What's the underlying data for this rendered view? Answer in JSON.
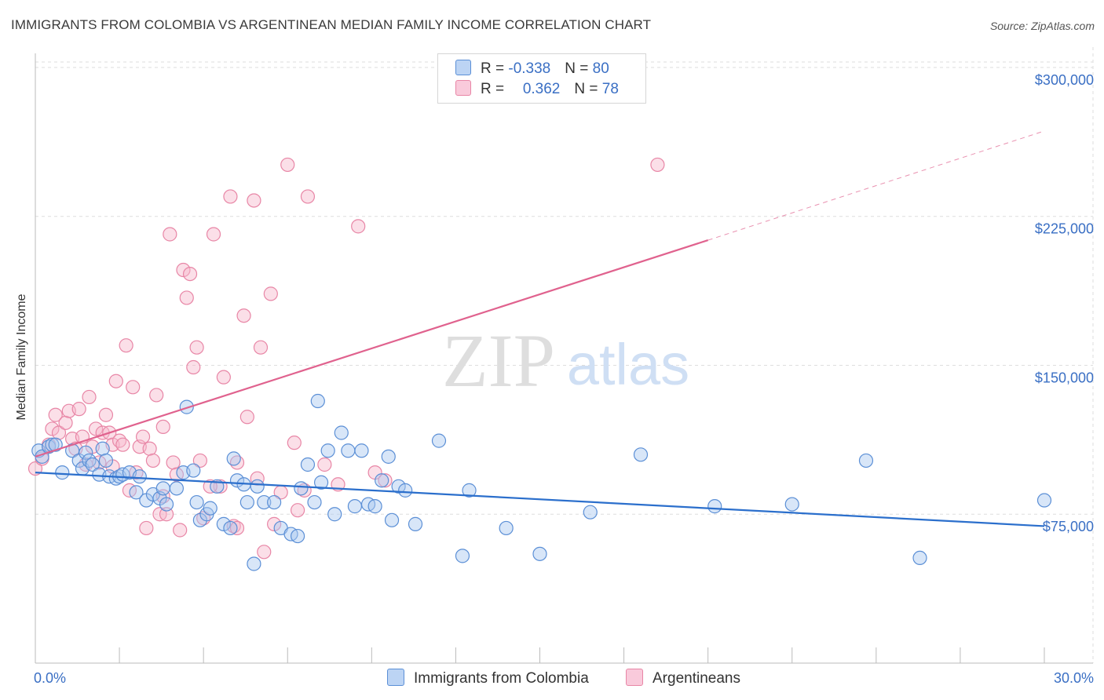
{
  "title": "IMMIGRANTS FROM COLOMBIA VS ARGENTINEAN MEDIAN FAMILY INCOME CORRELATION CHART",
  "source": "Source: ZipAtlas.com",
  "watermark": {
    "zip": "ZIP",
    "atlas": "atlas"
  },
  "legend_top": [
    {
      "r_label": "R = ",
      "r_value": "-0.338",
      "n_label": "N = ",
      "n_value": "80"
    },
    {
      "r_label": "R = ",
      "r_value": "0.362",
      "n_label": "N = ",
      "n_value": "78"
    }
  ],
  "colors": {
    "blue_fill": "#a9c8f0",
    "blue_stroke": "#5b8fd6",
    "blue_line": "#2b6fcc",
    "pink_fill": "#f7b8cc",
    "pink_stroke": "#e886a6",
    "pink_line": "#e0628e",
    "grid": "#dddddd",
    "tick_text": "#3a6fc4"
  },
  "chart_data": {
    "type": "scatter",
    "title": "IMMIGRANTS FROM COLOMBIA VS ARGENTINEAN MEDIAN FAMILY INCOME CORRELATION CHART",
    "xlabel": "",
    "ylabel": "Median Family Income",
    "xlim": [
      0,
      30
    ],
    "ylim": [
      0,
      315000
    ],
    "x_tick_labels": [
      "0.0%",
      "30.0%"
    ],
    "y_ticks": [
      75000,
      150000,
      225000,
      300000
    ],
    "y_tick_labels": [
      "$75,000",
      "$150,000",
      "$225,000",
      "$300,000"
    ],
    "grid": true,
    "legend_position": "bottom",
    "series": [
      {
        "name": "Immigrants from Colombia",
        "r": -0.338,
        "n": 80,
        "trend": {
          "x": [
            0,
            30
          ],
          "y": [
            96000,
            69000
          ],
          "dashed_from": null
        },
        "points": [
          [
            0.1,
            107000
          ],
          [
            0.2,
            104000
          ],
          [
            0.4,
            109000
          ],
          [
            0.5,
            110000
          ],
          [
            0.6,
            110000
          ],
          [
            0.8,
            96000
          ],
          [
            1.1,
            107000
          ],
          [
            1.3,
            102000
          ],
          [
            1.4,
            98000
          ],
          [
            1.5,
            106000
          ],
          [
            1.6,
            102000
          ],
          [
            1.7,
            100000
          ],
          [
            1.9,
            95000
          ],
          [
            2.0,
            108000
          ],
          [
            2.1,
            102000
          ],
          [
            2.2,
            94000
          ],
          [
            2.4,
            93000
          ],
          [
            2.5,
            94000
          ],
          [
            2.6,
            95000
          ],
          [
            2.8,
            96000
          ],
          [
            3.1,
            94000
          ],
          [
            3.0,
            86000
          ],
          [
            3.3,
            82000
          ],
          [
            3.5,
            85000
          ],
          [
            3.7,
            83000
          ],
          [
            3.8,
            88000
          ],
          [
            3.9,
            80000
          ],
          [
            4.2,
            88000
          ],
          [
            4.4,
            96000
          ],
          [
            4.5,
            129000
          ],
          [
            4.7,
            97000
          ],
          [
            4.8,
            81000
          ],
          [
            4.9,
            72000
          ],
          [
            5.1,
            75000
          ],
          [
            5.2,
            78000
          ],
          [
            5.4,
            89000
          ],
          [
            5.6,
            70000
          ],
          [
            5.8,
            68000
          ],
          [
            5.9,
            103000
          ],
          [
            6.0,
            92000
          ],
          [
            6.2,
            90000
          ],
          [
            6.3,
            81000
          ],
          [
            6.5,
            50000
          ],
          [
            6.6,
            89000
          ],
          [
            6.8,
            81000
          ],
          [
            7.1,
            81000
          ],
          [
            7.3,
            68000
          ],
          [
            7.6,
            65000
          ],
          [
            7.8,
            64000
          ],
          [
            7.9,
            88000
          ],
          [
            8.1,
            100000
          ],
          [
            8.3,
            81000
          ],
          [
            8.5,
            91000
          ],
          [
            8.7,
            107000
          ],
          [
            8.9,
            75000
          ],
          [
            9.1,
            116000
          ],
          [
            9.3,
            107000
          ],
          [
            9.5,
            79000
          ],
          [
            9.7,
            107000
          ],
          [
            9.9,
            80000
          ],
          [
            10.1,
            79000
          ],
          [
            10.3,
            92000
          ],
          [
            10.5,
            104000
          ],
          [
            10.6,
            72000
          ],
          [
            10.8,
            89000
          ],
          [
            11.0,
            87000
          ],
          [
            11.3,
            70000
          ],
          [
            12.0,
            112000
          ],
          [
            12.7,
            54000
          ],
          [
            12.9,
            87000
          ],
          [
            14.0,
            68000
          ],
          [
            15.0,
            55000
          ],
          [
            16.5,
            76000
          ],
          [
            18.0,
            105000
          ],
          [
            20.2,
            79000
          ],
          [
            22.5,
            80000
          ],
          [
            24.7,
            102000
          ],
          [
            26.3,
            53000
          ],
          [
            30.0,
            82000
          ],
          [
            8.4,
            132000
          ]
        ]
      },
      {
        "name": "Argentineans",
        "r": 0.362,
        "n": 78,
        "trend": {
          "x": [
            0,
            20,
            30
          ],
          "y": [
            104000,
            213000,
            268000
          ],
          "dashed_from": 20
        },
        "points": [
          [
            0.0,
            98000
          ],
          [
            0.2,
            103000
          ],
          [
            0.4,
            110000
          ],
          [
            0.5,
            118000
          ],
          [
            0.6,
            125000
          ],
          [
            0.7,
            116000
          ],
          [
            0.9,
            121000
          ],
          [
            1.0,
            127000
          ],
          [
            1.1,
            113000
          ],
          [
            1.2,
            108000
          ],
          [
            1.3,
            128000
          ],
          [
            1.4,
            114000
          ],
          [
            1.5,
            100000
          ],
          [
            1.6,
            134000
          ],
          [
            1.7,
            109000
          ],
          [
            1.8,
            118000
          ],
          [
            1.9,
            101000
          ],
          [
            2.0,
            116000
          ],
          [
            2.1,
            125000
          ],
          [
            2.2,
            116000
          ],
          [
            2.3,
            110000
          ],
          [
            2.4,
            142000
          ],
          [
            2.5,
            112000
          ],
          [
            2.6,
            110000
          ],
          [
            2.7,
            160000
          ],
          [
            2.8,
            87000
          ],
          [
            2.9,
            139000
          ],
          [
            3.0,
            96000
          ],
          [
            3.1,
            109000
          ],
          [
            3.2,
            114000
          ],
          [
            3.3,
            68000
          ],
          [
            3.4,
            108000
          ],
          [
            3.5,
            102000
          ],
          [
            3.6,
            135000
          ],
          [
            3.7,
            75000
          ],
          [
            3.8,
            119000
          ],
          [
            3.9,
            75000
          ],
          [
            4.0,
            216000
          ],
          [
            4.1,
            101000
          ],
          [
            4.2,
            95000
          ],
          [
            4.3,
            67000
          ],
          [
            4.4,
            198000
          ],
          [
            4.5,
            184000
          ],
          [
            4.6,
            196000
          ],
          [
            4.7,
            149000
          ],
          [
            4.8,
            159000
          ],
          [
            4.9,
            102000
          ],
          [
            5.0,
            73000
          ],
          [
            5.3,
            216000
          ],
          [
            5.5,
            89000
          ],
          [
            5.6,
            144000
          ],
          [
            5.8,
            235000
          ],
          [
            5.9,
            69000
          ],
          [
            6.0,
            101000
          ],
          [
            6.2,
            175000
          ],
          [
            6.3,
            124000
          ],
          [
            6.5,
            233000
          ],
          [
            6.6,
            93000
          ],
          [
            6.7,
            159000
          ],
          [
            6.8,
            56000
          ],
          [
            7.0,
            186000
          ],
          [
            7.1,
            70000
          ],
          [
            7.3,
            86000
          ],
          [
            7.5,
            251000
          ],
          [
            7.7,
            111000
          ],
          [
            7.8,
            77000
          ],
          [
            8.0,
            87000
          ],
          [
            8.1,
            235000
          ],
          [
            8.6,
            100000
          ],
          [
            9.6,
            220000
          ],
          [
            10.1,
            96000
          ],
          [
            10.4,
            92000
          ],
          [
            18.5,
            251000
          ],
          [
            9.0,
            90000
          ],
          [
            6.0,
            68000
          ],
          [
            5.2,
            89000
          ],
          [
            3.8,
            84000
          ],
          [
            2.3,
            99000
          ]
        ]
      }
    ]
  }
}
